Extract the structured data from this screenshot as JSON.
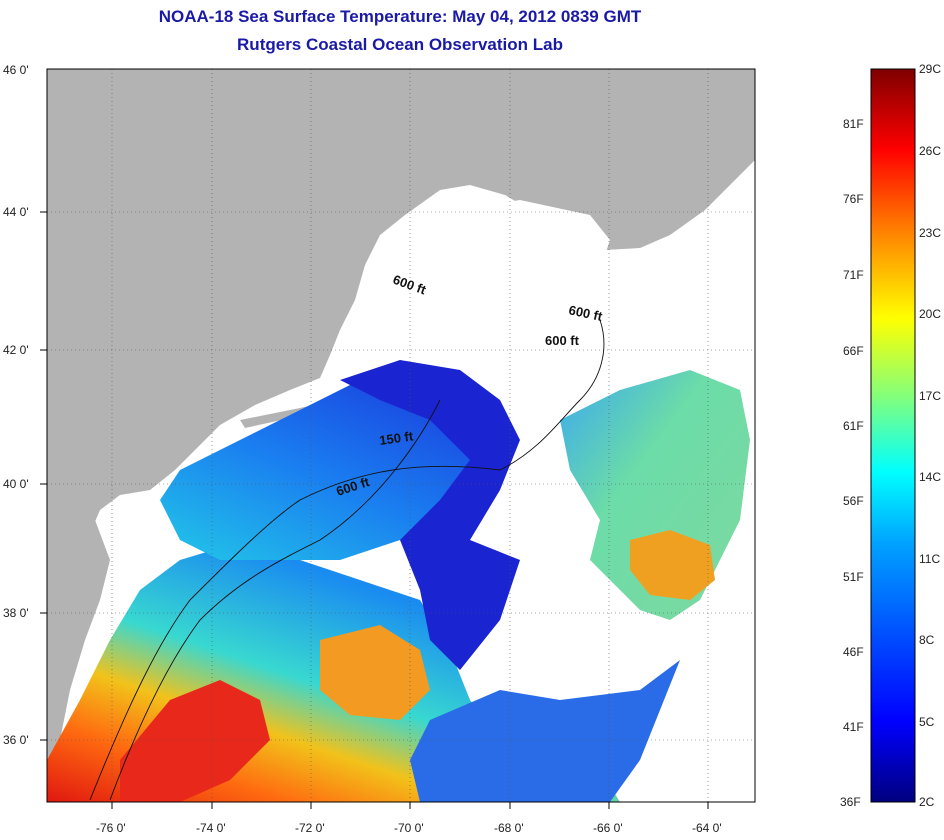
{
  "header": {
    "title": "NOAA-18 Sea Surface Temperature:  May 04, 2012 0839 GMT",
    "subtitle": "Rutgers Coastal Ocean Observation Lab"
  },
  "map": {
    "lon_labels": [
      "-76 0'",
      "-74 0'",
      "-72 0'",
      "-70 0'",
      "-68 0'",
      "-66 0'",
      "-64 0'"
    ],
    "lat_labels": [
      "46 0'",
      "44 0'",
      "42 0'",
      "40 0'",
      "38 0'",
      "36 0'"
    ],
    "contour_labels": [
      "600 ft",
      "600 ft",
      "600 ft",
      "150 ft",
      "600 ft"
    ],
    "colors": {
      "land": "#b3b3b3",
      "cloud": "#ffffff",
      "cold": "#1414c8",
      "warm": "#e8321a"
    }
  },
  "colorbar": {
    "celsius": [
      "29C",
      "26C",
      "23C",
      "20C",
      "17C",
      "14C",
      "11C",
      "8C",
      "5C",
      "2C"
    ],
    "fahrenheit": [
      "81F",
      "76F",
      "71F",
      "66F",
      "61F",
      "56F",
      "51F",
      "46F",
      "41F",
      "36F"
    ],
    "gradient": [
      "#00007f",
      "#0000ff",
      "#007fff",
      "#00ffff",
      "#7fff7f",
      "#ffff00",
      "#ff7f00",
      "#ff0000",
      "#7f0000"
    ]
  }
}
